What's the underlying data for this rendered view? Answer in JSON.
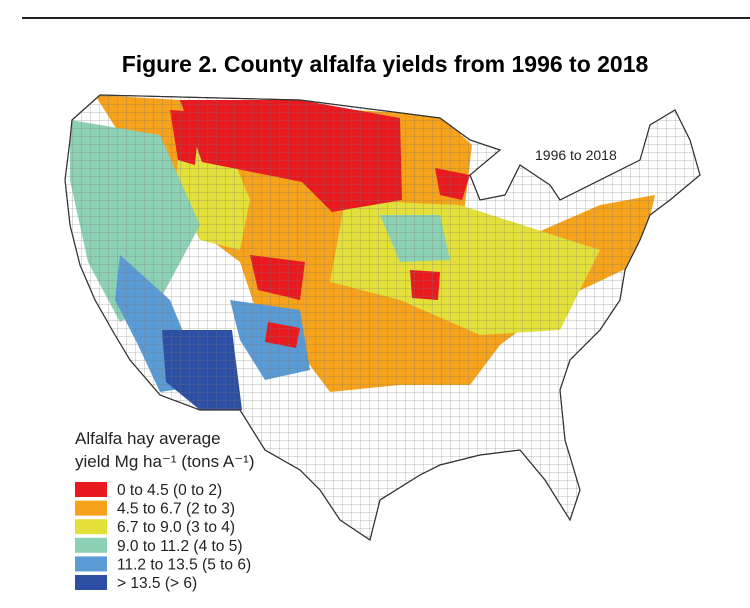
{
  "title": "Figure 2. County alfalfa yields from 1996 to 2018",
  "map": {
    "period_label": "1996 to 2018"
  },
  "legend": {
    "title": [
      "Alfalfa hay average",
      "yield Mg ha⁻¹ (tons A⁻¹)"
    ],
    "items": [
      {
        "label": "0 to 4.5 (0 to 2)",
        "color": "#e8191f"
      },
      {
        "label": "4.5 to 6.7 (2 to 3)",
        "color": "#f7a21b"
      },
      {
        "label": "6.7 to 9.0 (3 to 4)",
        "color": "#e3e03a"
      },
      {
        "label": "9.0 to 11.2 (4 to 5)",
        "color": "#8dd1b4"
      },
      {
        "label": "11.2 to 13.5 (5 to 6)",
        "color": "#5a9bd6"
      },
      {
        "label": "> 13.5 (> 6)",
        "color": "#2c4fa3"
      }
    ]
  }
}
